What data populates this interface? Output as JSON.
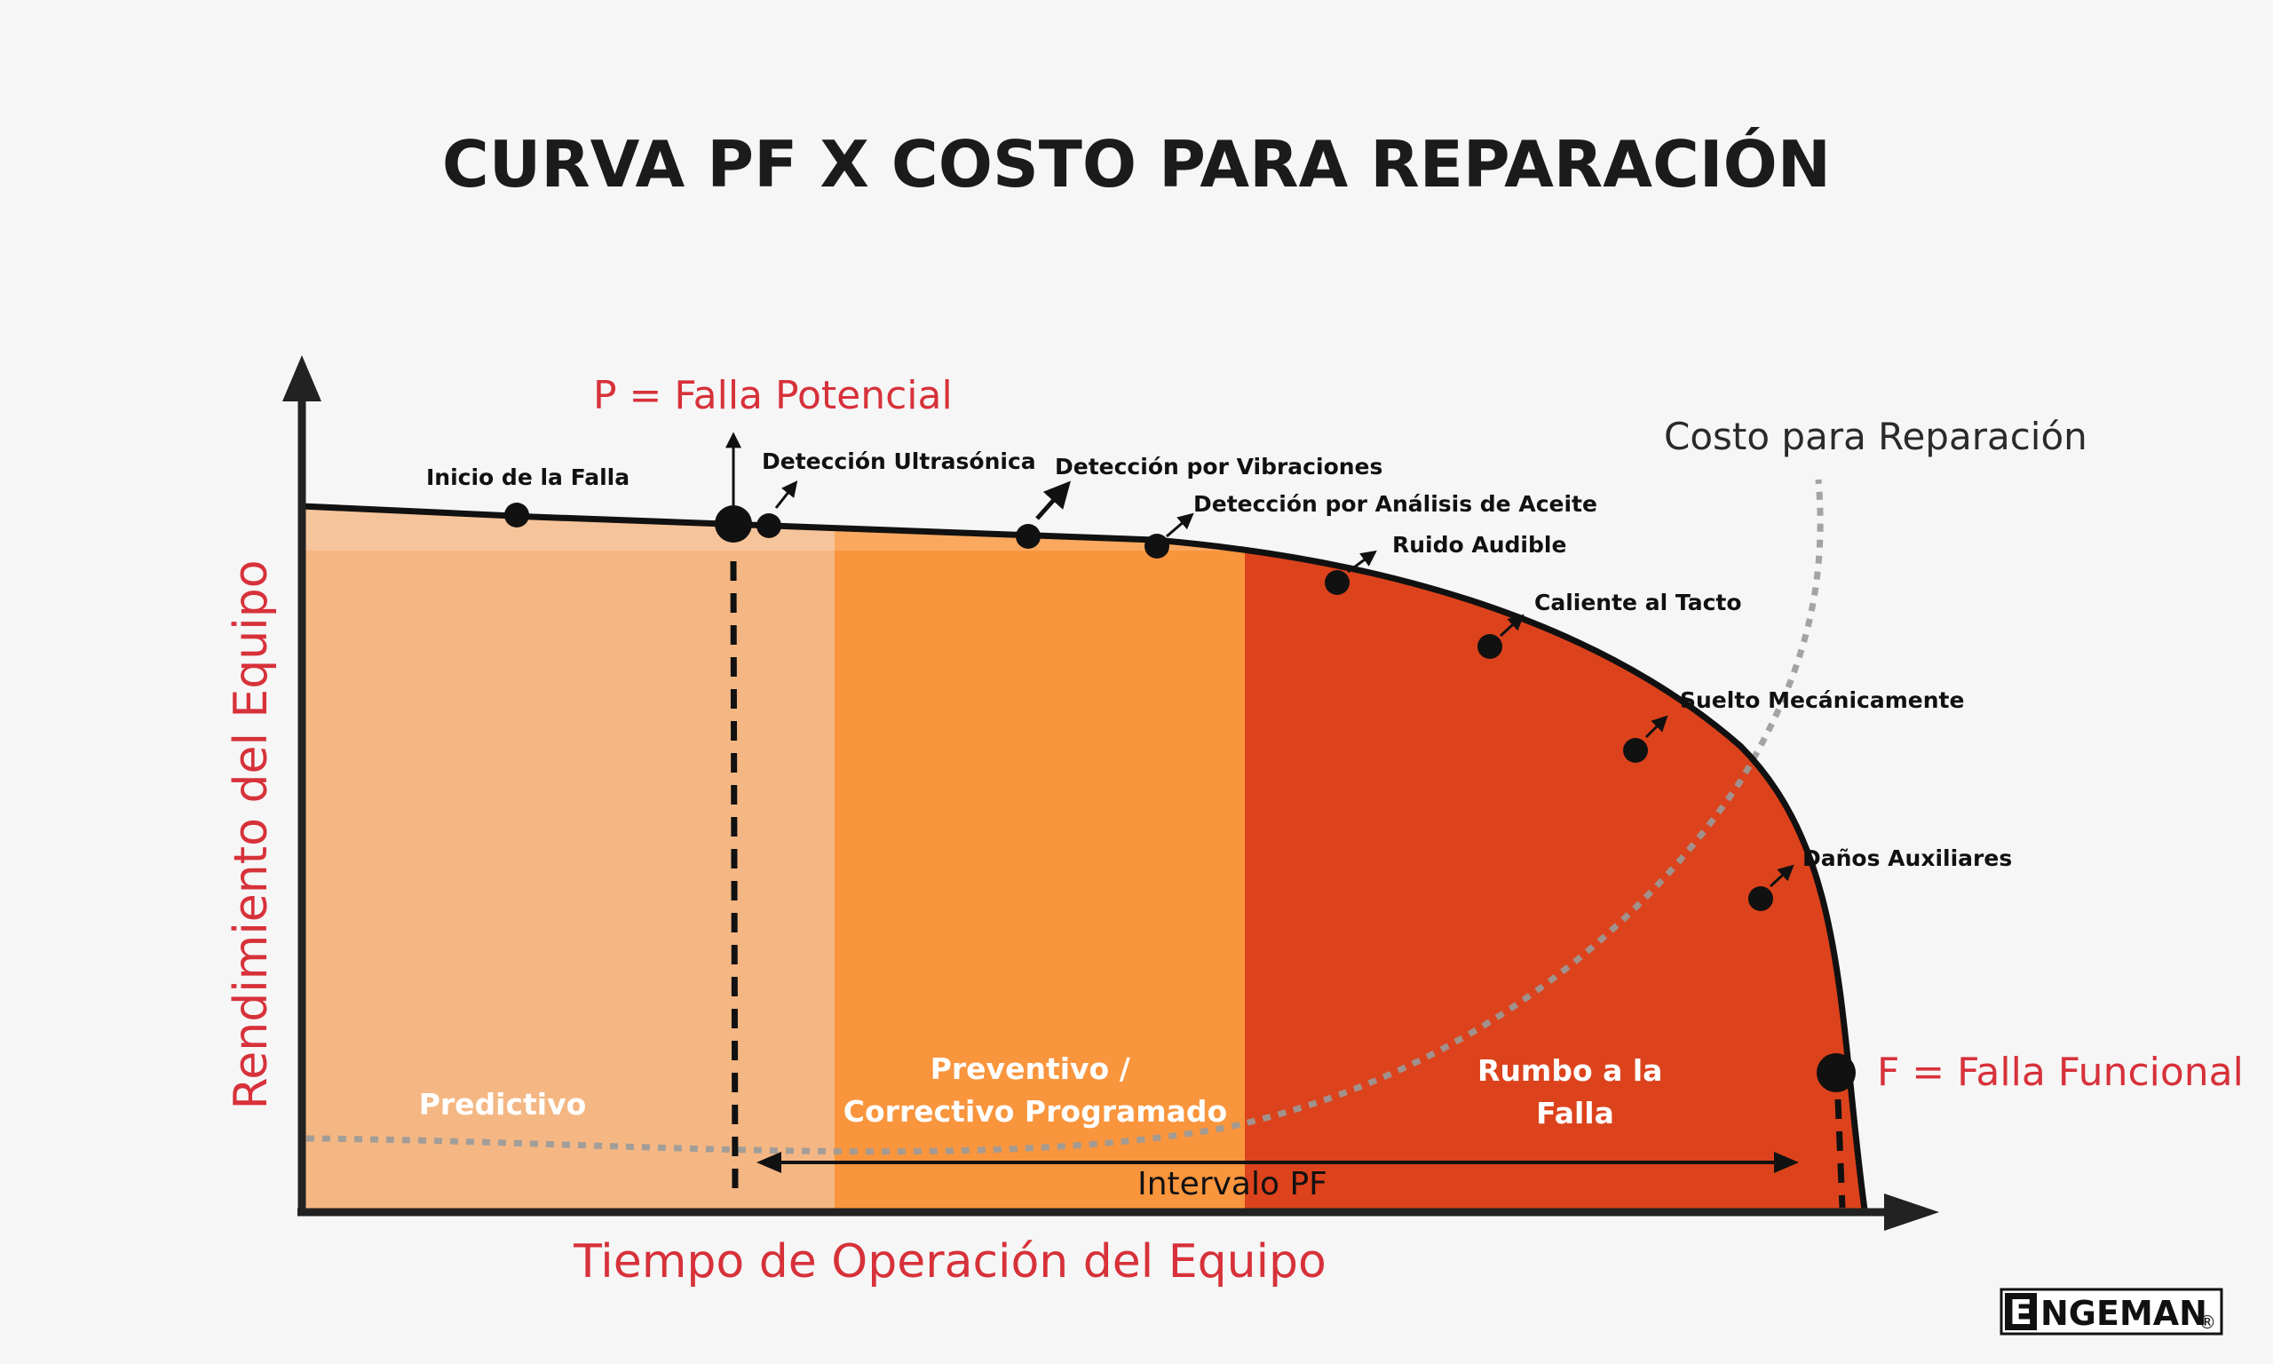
{
  "title": "CURVA PF X COSTO PARA REPARACIÓN",
  "p_label": "P = Falla Potencial",
  "f_label": "F = Falla Funcional",
  "cost_label": "Costo para Reparación",
  "y_axis_label": "Rendimiento del Equipo",
  "x_axis_label": "Tiempo de Operación del Equipo",
  "interval_label": "Intervalo PF",
  "zones": [
    {
      "id": "predictivo",
      "lines": [
        "Predictivo"
      ],
      "color": "#f4b784"
    },
    {
      "id": "preventivo",
      "lines": [
        "Preventivo /",
        "Correctivo Programado"
      ],
      "color": "#f9953d"
    },
    {
      "id": "rumbo",
      "lines": [
        "Rumbo a la",
        "Falla"
      ],
      "color": "#dc431c"
    }
  ],
  "events": [
    {
      "id": "inicio",
      "label": "Inicio de la Falla"
    },
    {
      "id": "ultrasonica",
      "label": "Detección Ultrasónica"
    },
    {
      "id": "vibraciones",
      "label": "Detección por Vibraciones"
    },
    {
      "id": "aceite",
      "label": "Detección por Análisis de Aceite"
    },
    {
      "id": "ruido",
      "label": "Ruido Audible"
    },
    {
      "id": "caliente",
      "label": "Caliente al Tacto"
    },
    {
      "id": "suelto",
      "label": "Suelto Mecánicamente"
    },
    {
      "id": "danos",
      "label": "Daños Auxiliares"
    }
  ],
  "logo": {
    "initial": "E",
    "rest": "NGEMAN",
    "mark": "®"
  },
  "colors": {
    "accent_red": "#d7313a",
    "curve": "#111111",
    "cost_curve": "#9a9a9a",
    "background": "#f6f6f6"
  }
}
